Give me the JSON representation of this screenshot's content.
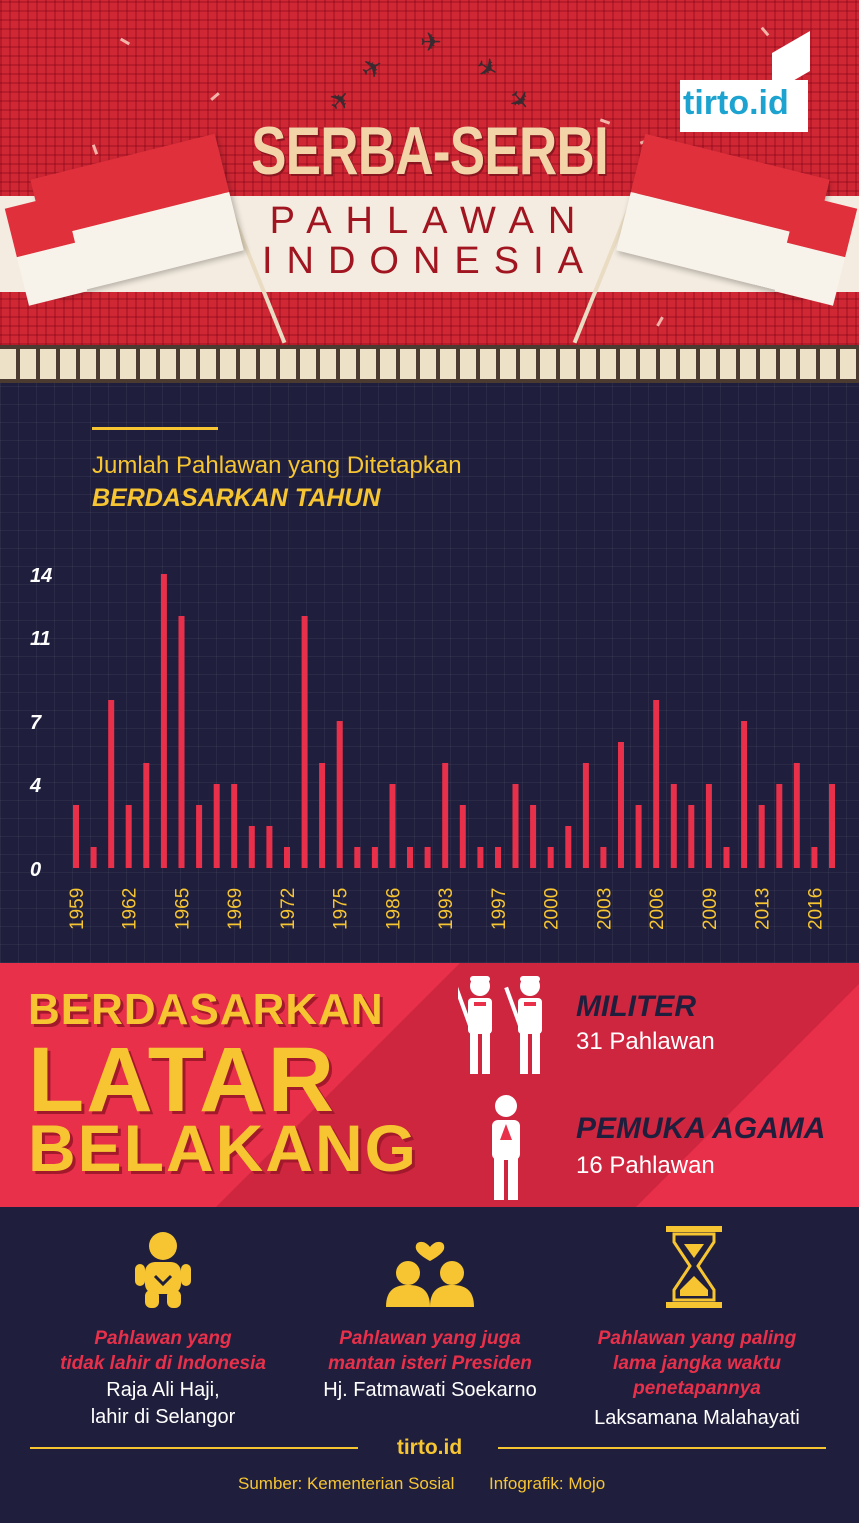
{
  "header": {
    "title": "SERBA-SERBI",
    "subtitle_line1": "PAHLAWAN",
    "subtitle_line2": "INDONESIA",
    "brand": "tirto.id"
  },
  "colors": {
    "red": "#e8304a",
    "yellow": "#f6c531",
    "navy": "#1f1f3d",
    "bar": "#e8304a"
  },
  "chart_data": {
    "type": "bar",
    "title": "Jumlah Pahlawan yang Ditetapkan",
    "subtitle": "BERDASARKAN TAHUN",
    "ylim": [
      0,
      14
    ],
    "yticks": [
      0,
      4,
      7,
      11,
      14
    ],
    "tick_labels": [
      "1959",
      "1962",
      "1965",
      "1969",
      "1972",
      "1975",
      "1986",
      "1993",
      "1997",
      "2000",
      "2003",
      "2006",
      "2009",
      "2013",
      "2016"
    ],
    "tick_indices": [
      0,
      3,
      6,
      9,
      12,
      15,
      18,
      21,
      24,
      27,
      30,
      33,
      36,
      39,
      42
    ],
    "values": [
      3,
      1,
      8,
      3,
      5,
      14,
      12,
      3,
      4,
      4,
      2,
      2,
      1,
      12,
      5,
      7,
      1,
      1,
      4,
      1,
      1,
      5,
      3,
      1,
      1,
      4,
      3,
      1,
      2,
      5,
      1,
      6,
      3,
      8,
      4,
      3,
      4,
      1,
      7,
      3,
      4,
      5,
      1,
      4
    ],
    "grid": true
  },
  "latar": {
    "heading_line1": "BERDASARKAN",
    "heading_line2": "LATAR",
    "heading_line3": "BELAKANG",
    "categories": [
      {
        "title": "MILITER",
        "count": "31 Pahlawan",
        "icon": "soldiers-icon"
      },
      {
        "title": "PEMUKA AGAMA",
        "count": "16 Pahlawan",
        "icon": "praying-person-icon"
      }
    ]
  },
  "facts": [
    {
      "title_line1": "Pahlawan yang",
      "title_line2": "tidak lahir di Indonesia",
      "name_line1": "Raja Ali Haji,",
      "name_line2": "lahir di Selangor",
      "icon": "baby-icon"
    },
    {
      "title_line1": "Pahlawan yang juga",
      "title_line2": "mantan isteri Presiden",
      "name_line1": "Hj. Fatmawati Soekarno",
      "name_line2": "",
      "icon": "couple-heart-icon"
    },
    {
      "title_line1": "Pahlawan yang paling",
      "title_line2": "lama jangka waktu",
      "title_line3": "penetapannya",
      "name_line1": "Laksamana Malahayati",
      "icon": "hourglass-icon"
    }
  ],
  "footer": {
    "brand": "tirto.id",
    "source": "Sumber: Kementerian Sosial",
    "credit": "Infografik: Mojo"
  }
}
